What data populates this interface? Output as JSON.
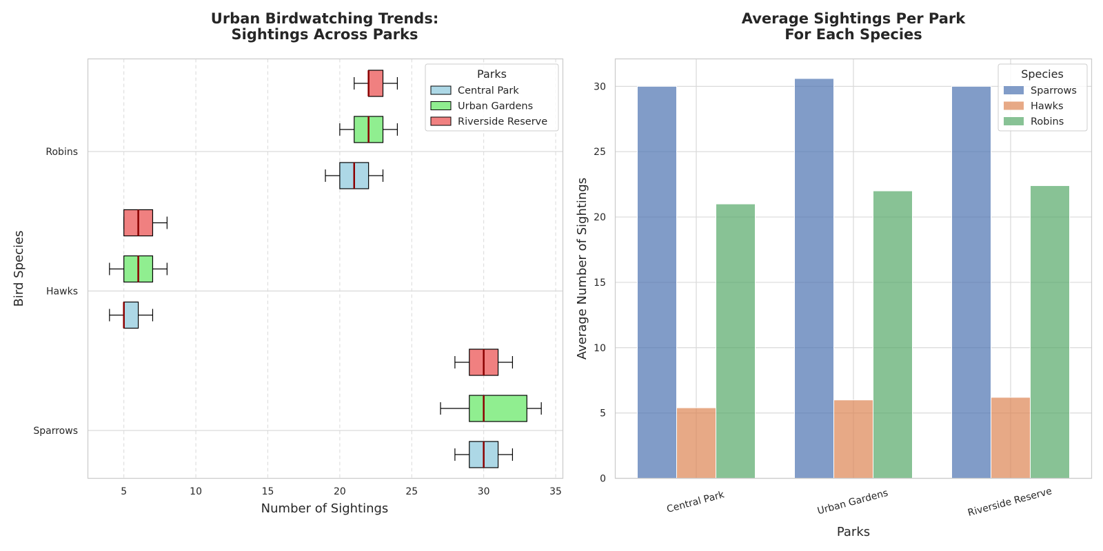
{
  "chart_data": [
    {
      "type": "boxplot",
      "orientation": "horizontal",
      "title": "Urban Birdwatching Trends:\nSightings Across Parks",
      "title_lines": [
        "Urban Birdwatching Trends:",
        "Sightings Across Parks"
      ],
      "xlabel": "Number of Sightings",
      "ylabel": "Bird Species",
      "xlim": [
        2.5,
        35.5
      ],
      "xticks": [
        5,
        10,
        15,
        20,
        25,
        30,
        35
      ],
      "categories": [
        "Sparrows",
        "Hawks",
        "Robins"
      ],
      "grid": "x-dashed",
      "legend_title": "Parks",
      "legend_position": "top-right",
      "median_color": "#8b0000",
      "series": [
        {
          "name": "Central Park",
          "color": "#add8e6",
          "boxes": [
            {
              "category": "Sparrows",
              "whislo": 28,
              "q1": 29,
              "med": 30,
              "q3": 31,
              "whishi": 32
            },
            {
              "category": "Hawks",
              "whislo": 4,
              "q1": 5,
              "med": 5,
              "q3": 6,
              "whishi": 7
            },
            {
              "category": "Robins",
              "whislo": 19,
              "q1": 20,
              "med": 21,
              "q3": 22,
              "whishi": 23
            }
          ]
        },
        {
          "name": "Urban Gardens",
          "color": "#90ee90",
          "boxes": [
            {
              "category": "Sparrows",
              "whislo": 27,
              "q1": 29,
              "med": 30,
              "q3": 33,
              "whishi": 34
            },
            {
              "category": "Hawks",
              "whislo": 4,
              "q1": 5,
              "med": 6,
              "q3": 7,
              "whishi": 8
            },
            {
              "category": "Robins",
              "whislo": 20,
              "q1": 21,
              "med": 22,
              "q3": 23,
              "whishi": 24
            }
          ]
        },
        {
          "name": "Riverside Reserve",
          "color": "#f08080",
          "boxes": [
            {
              "category": "Sparrows",
              "whislo": 28,
              "q1": 29,
              "med": 30,
              "q3": 31,
              "whishi": 32
            },
            {
              "category": "Hawks",
              "whislo": 5,
              "q1": 5,
              "med": 6,
              "q3": 7,
              "whishi": 8
            },
            {
              "category": "Robins",
              "whislo": 21,
              "q1": 22,
              "med": 22,
              "q3": 23,
              "whishi": 24
            }
          ]
        }
      ]
    },
    {
      "type": "bar",
      "title": "Average Sightings Per Park\nFor Each Species",
      "title_lines": [
        "Average Sightings Per Park",
        "For Each Species"
      ],
      "xlabel": "Parks",
      "ylabel": "Average Number of Sightings",
      "categories": [
        "Central Park",
        "Urban Gardens",
        "Riverside Reserve"
      ],
      "ylim": [
        0,
        32.1
      ],
      "yticks": [
        0,
        5,
        10,
        15,
        20,
        25,
        30
      ],
      "grid": "both",
      "legend_title": "Species",
      "legend_position": "top-right",
      "series": [
        {
          "name": "Sparrows",
          "color": "#4c72b0",
          "values": [
            30.0,
            30.6,
            30.0
          ]
        },
        {
          "name": "Hawks",
          "color": "#dd8452",
          "values": [
            5.4,
            6.0,
            6.2
          ]
        },
        {
          "name": "Robins",
          "color": "#55a868",
          "values": [
            21.0,
            22.0,
            22.4
          ]
        }
      ]
    }
  ]
}
